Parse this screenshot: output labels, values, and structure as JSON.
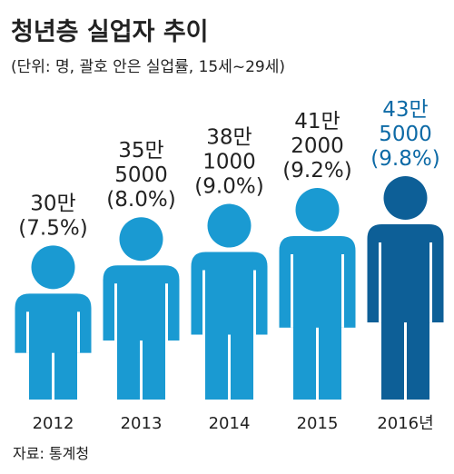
{
  "chart_data": {
    "type": "pictogram",
    "title": "청년층 실업자 추이",
    "subtitle": "(단위: 명, 괄호 안은 실업률, 15세~29세)",
    "source": "자료: 통계청",
    "categories": [
      "2012",
      "2013",
      "2014",
      "2015",
      "2016년"
    ],
    "values": [
      300000,
      355000,
      381000,
      412000,
      435000
    ],
    "value_labels": [
      [
        "30만"
      ],
      [
        "35만",
        "5000"
      ],
      [
        "38만",
        "1000"
      ],
      [
        "41만",
        "2000"
      ],
      [
        "43만",
        "5000"
      ]
    ],
    "rates": [
      7.5,
      8.0,
      9.0,
      9.2,
      9.8
    ],
    "rate_labels": [
      "(7.5%)",
      "(8.0%)",
      "(9.0%)",
      "(9.2%)",
      "(9.8%)"
    ],
    "colors": [
      "#1a9ad2",
      "#1a9ad2",
      "#1a9ad2",
      "#1a9ad2",
      "#0d5f97"
    ],
    "label_colors": [
      "#222222",
      "#222222",
      "#222222",
      "#222222",
      "#0d6aa6"
    ]
  }
}
